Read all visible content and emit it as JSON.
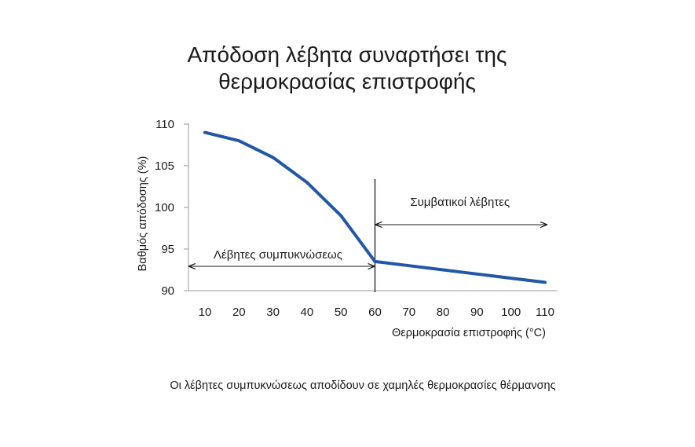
{
  "chart_data": {
    "type": "line",
    "title": [
      "Απόδοση λέβητα συναρτήσει της",
      "θερμοκρασίας επιστροφής"
    ],
    "xlabel": "Θερμοκρασία επιστροφής (°C)",
    "ylabel": "Βαθμός απόδοσης (%)",
    "x": [
      10,
      20,
      30,
      40,
      50,
      60,
      70,
      80,
      90,
      100,
      110
    ],
    "x_ticks": [
      "10",
      "20",
      "30",
      "40",
      "50",
      "60",
      "70",
      "80",
      "90",
      "100",
      "110"
    ],
    "y_ticks": [
      "90",
      "95",
      "100",
      "105",
      "110"
    ],
    "ylim": [
      90,
      110
    ],
    "grid": false,
    "series": [
      {
        "x": [
          10,
          20,
          30,
          40,
          50,
          60,
          70,
          80,
          90,
          100,
          110
        ],
        "values": [
          109,
          108,
          106,
          103,
          99,
          93.5,
          93,
          92.5,
          92,
          91.5,
          91
        ],
        "color": "#2157a6"
      }
    ],
    "divider_x": 60,
    "annotations": [
      {
        "text": "Συμβατικοί λέβητες",
        "range": [
          60,
          110
        ]
      },
      {
        "text": "Λέβητες συμπυκνώσεως",
        "range": [
          5,
          60
        ]
      }
    ],
    "caption": "Οι λέβητες συμπυκνώσεως αποδίδουν σε χαμηλές θερμοκρασίες θέρμανσης"
  }
}
